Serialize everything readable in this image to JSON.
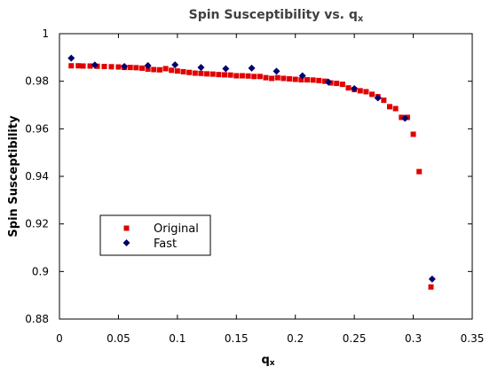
{
  "chart_data": {
    "type": "scatter",
    "title_main": "Spin Susceptibility vs. q",
    "title_sub": "x",
    "xlabel_main": "q",
    "xlabel_sub": "x",
    "ylabel": "Spin Susceptibility",
    "xlim": [
      0,
      0.35
    ],
    "ylim": [
      0.88,
      1.0
    ],
    "x_ticks": [
      0,
      0.05,
      0.1,
      0.15,
      0.2,
      0.25,
      0.3,
      0.35
    ],
    "x_tick_labels": [
      "0",
      "0.05",
      "0.1",
      "0.15",
      "0.2",
      "0.25",
      "0.3",
      "0.35"
    ],
    "y_ticks": [
      0.88,
      0.9,
      0.92,
      0.94,
      0.96,
      0.98,
      1.0
    ],
    "y_tick_labels": [
      "0.88",
      "0.9",
      "0.92",
      "0.94",
      "0.96",
      "0.98",
      "1"
    ],
    "legend_position": "left-center",
    "series": [
      {
        "name": "Original",
        "marker": "square",
        "color": "#e00000",
        "x": [
          0.01,
          0.016,
          0.02,
          0.026,
          0.032,
          0.038,
          0.044,
          0.05,
          0.055,
          0.06,
          0.065,
          0.07,
          0.075,
          0.08,
          0.085,
          0.09,
          0.095,
          0.1,
          0.105,
          0.11,
          0.115,
          0.12,
          0.125,
          0.13,
          0.135,
          0.14,
          0.145,
          0.15,
          0.155,
          0.16,
          0.165,
          0.17,
          0.175,
          0.18,
          0.185,
          0.19,
          0.195,
          0.2,
          0.205,
          0.21,
          0.215,
          0.22,
          0.225,
          0.23,
          0.235,
          0.24,
          0.245,
          0.25,
          0.255,
          0.26,
          0.265,
          0.27,
          0.275,
          0.28,
          0.285,
          0.29,
          0.295,
          0.3,
          0.305,
          0.315
        ],
        "y": [
          0.9865,
          0.9865,
          0.9864,
          0.9864,
          0.9863,
          0.9862,
          0.9861,
          0.986,
          0.9858,
          0.9858,
          0.9857,
          0.9855,
          0.9851,
          0.9849,
          0.9848,
          0.9853,
          0.9846,
          0.9843,
          0.984,
          0.9837,
          0.9834,
          0.9833,
          0.9831,
          0.983,
          0.9828,
          0.9827,
          0.9826,
          0.9823,
          0.9823,
          0.9822,
          0.982,
          0.982,
          0.9815,
          0.9812,
          0.9815,
          0.9812,
          0.981,
          0.9808,
          0.9806,
          0.9806,
          0.9805,
          0.9803,
          0.98,
          0.9793,
          0.9791,
          0.9787,
          0.9772,
          0.9765,
          0.976,
          0.9756,
          0.9745,
          0.9735,
          0.972,
          0.9693,
          0.9685,
          0.9648,
          0.9648,
          0.9577,
          0.942,
          0.8935
        ]
      },
      {
        "name": "Fast",
        "marker": "diamond",
        "color": "#00006e",
        "x": [
          0.01,
          0.03,
          0.055,
          0.075,
          0.098,
          0.12,
          0.141,
          0.163,
          0.184,
          0.206,
          0.228,
          0.25,
          0.27,
          0.293,
          0.316
        ],
        "y": [
          0.9897,
          0.9868,
          0.9862,
          0.9866,
          0.9869,
          0.9858,
          0.9853,
          0.9855,
          0.9842,
          0.9823,
          0.9797,
          0.9769,
          0.973,
          0.9644,
          0.8968
        ]
      }
    ]
  }
}
